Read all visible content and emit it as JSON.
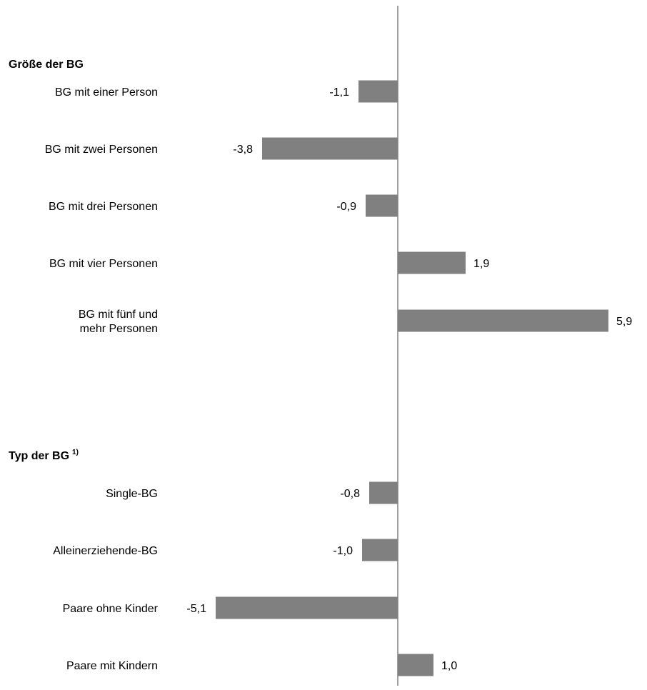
{
  "colors": {
    "bar": "#808080",
    "axis": "#808080",
    "text": "#000000"
  },
  "chart_data": {
    "type": "bar",
    "orientation": "horizontal",
    "groups": [
      {
        "title": "Größe der BG",
        "footnote_marker": "",
        "rows": [
          {
            "lines": [
              "BG mit einer Person"
            ],
            "value": -1.1,
            "value_label": "-1,1"
          },
          {
            "lines": [
              "BG mit zwei Personen"
            ],
            "value": -3.8,
            "value_label": "-3,8"
          },
          {
            "lines": [
              "BG mit drei Personen"
            ],
            "value": -0.9,
            "value_label": "-0,9"
          },
          {
            "lines": [
              "BG mit vier Personen"
            ],
            "value": 1.9,
            "value_label": "1,9"
          },
          {
            "lines": [
              "BG mit fünf und",
              "mehr Personen"
            ],
            "value": 5.9,
            "value_label": "5,9"
          }
        ]
      },
      {
        "title": "Typ der BG",
        "footnote_marker": "1)",
        "rows": [
          {
            "lines": [
              "Single-BG"
            ],
            "value": -0.8,
            "value_label": "-0,8"
          },
          {
            "lines": [
              "Alleinerziehende-BG"
            ],
            "value": -1.0,
            "value_label": "-1,0"
          },
          {
            "lines": [
              "Paare ohne Kinder"
            ],
            "value": -5.1,
            "value_label": "-5,1"
          },
          {
            "lines": [
              "Paare mit Kindern"
            ],
            "value": 1.0,
            "value_label": "1,0"
          }
        ]
      }
    ],
    "title": "",
    "xlabel": "",
    "ylabel": "",
    "grid": false,
    "legend": "none"
  }
}
